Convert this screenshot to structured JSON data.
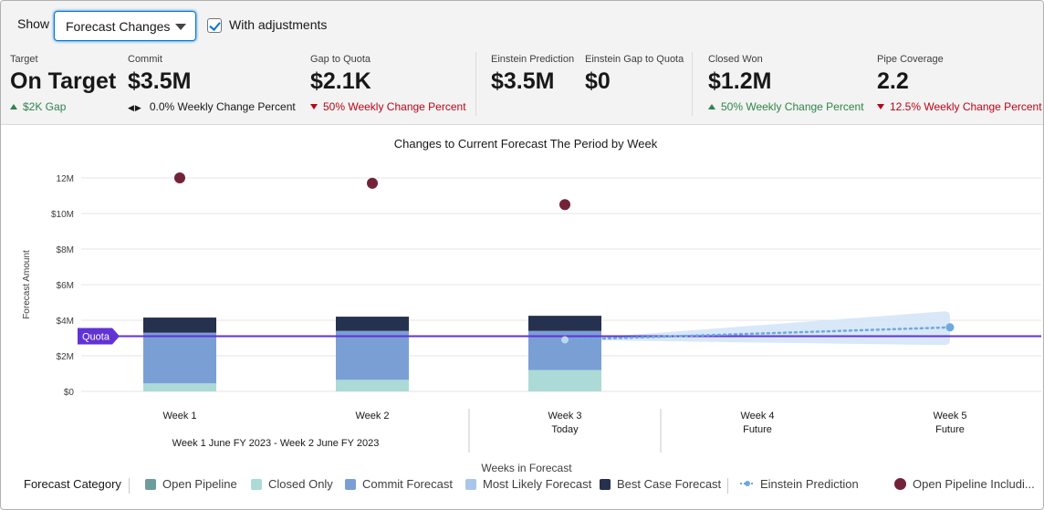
{
  "toolbar": {
    "show_label": "Show",
    "select_value": "Forecast Changes",
    "checkbox_label": "With adjustments",
    "checkbox_checked": true
  },
  "metrics": [
    {
      "label": "Target",
      "value": "On Target",
      "change": "$2K Gap",
      "direction": "up"
    },
    {
      "label": "Commit",
      "value": "$3.5M",
      "change": "0.0% Weekly Change Percent",
      "direction": "flat"
    },
    {
      "label": "Gap to Quota",
      "value": "$2.1K",
      "change": "50% Weekly Change Percent",
      "direction": "down"
    },
    {
      "label": "Einstein Prediction",
      "value": "$3.5M",
      "change": "",
      "direction": "none"
    },
    {
      "label": "Einstein Gap to Quota",
      "value": "$0",
      "change": "",
      "direction": "none"
    },
    {
      "label": "Closed Won",
      "value": "$1.2M",
      "change": "50% Weekly Change Percent",
      "direction": "up"
    },
    {
      "label": "Pipe Coverage",
      "value": "2.2",
      "change": "12.5% Weekly Change Percent",
      "direction": "down"
    }
  ],
  "colors": {
    "open_pipeline": "#6e9c9c",
    "closed_only": "#acdad6",
    "commit_forecast": "#7a9fd5",
    "most_likely_forecast": "#a9c6ea",
    "best_case_forecast": "#26304f",
    "einstein_prediction": "#6ea9de",
    "open_pipeline_including": "#722339",
    "quota": "#6132d6",
    "up": "#2e844a",
    "down": "#ba0517"
  },
  "chart_data": {
    "type": "bar",
    "title": "Changes to Current Forecast The Period by Week",
    "xlabel": "Weeks in Forecast",
    "ylabel": "Forecast Amount",
    "ylim": [
      0,
      12000000
    ],
    "yticks": [
      {
        "value": 0,
        "label": "$0"
      },
      {
        "value": 2000000,
        "label": "$2M"
      },
      {
        "value": 4000000,
        "label": "$4M"
      },
      {
        "value": 6000000,
        "label": "$6M"
      },
      {
        "value": 8000000,
        "label": "$8M"
      },
      {
        "value": 10000000,
        "label": "$10M"
      },
      {
        "value": 12000000,
        "label": "12M"
      }
    ],
    "categories": [
      "Week 1",
      "Week 2",
      "Week 3",
      "Week 4",
      "Week 5"
    ],
    "category_sublabels": [
      "",
      "",
      "Today",
      "Future",
      "Future"
    ],
    "period_label": "Week 1 June FY 2023 - Week 2 June FY 2023",
    "grid": true,
    "series": [
      {
        "name": "Closed Only",
        "values": [
          450000,
          650000,
          1200000,
          null,
          null
        ]
      },
      {
        "name": "Commit Forecast",
        "values": [
          2850000,
          2750000,
          2200000,
          null,
          null
        ]
      },
      {
        "name": "Best Case Forecast",
        "values": [
          850000,
          800000,
          850000,
          null,
          null
        ]
      }
    ],
    "open_pipeline_including": {
      "values": [
        12000000,
        11700000,
        10500000,
        null,
        null
      ]
    },
    "einstein_prediction": {
      "from": {
        "x": "Week 3",
        "y": 2900000
      },
      "to": {
        "x": "Week 5",
        "y": 3600000
      },
      "band_upper": 4500000,
      "band_lower": 2600000
    },
    "quota": {
      "label": "Quota",
      "value": 3100000
    },
    "legend": {
      "title": "Forecast Category",
      "items": [
        "Open Pipeline",
        "Closed Only",
        "Commit Forecast",
        "Most Likely Forecast",
        "Best Case Forecast",
        "Einstein Prediction",
        "Open Pipeline Includi..."
      ]
    }
  }
}
